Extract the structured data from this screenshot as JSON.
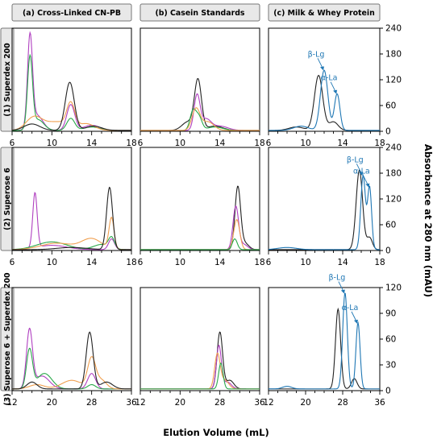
{
  "chart_data": {
    "type": "line",
    "xlabel": "Elution Volume (mL)",
    "ylabel": "Absorbance at 280 nm (mAU)",
    "columns": [
      {
        "label": "(a) Cross-Linked CN-PB"
      },
      {
        "label": "(b) Casein Standards"
      },
      {
        "label": "(c) Milk & Whey Protein"
      }
    ],
    "rows": [
      {
        "label": "(1) Superdex 200",
        "xlim": [
          6,
          18
        ],
        "xticks": [
          "6",
          "10",
          "14",
          "18"
        ],
        "ylim": [
          0,
          240
        ],
        "yticks": [
          "0",
          "60",
          "120",
          "180",
          "240"
        ]
      },
      {
        "label": "(2) Superose 6",
        "xlim": [
          6,
          18
        ],
        "xticks": [
          "6",
          "10",
          "14",
          "18"
        ],
        "ylim": [
          0,
          240
        ],
        "yticks": [
          "0",
          "60",
          "120",
          "180",
          "240"
        ]
      },
      {
        "label": "(3) Superose 6 + Superdex 200",
        "xlim": [
          12,
          36
        ],
        "xticks": [
          "12",
          "20",
          "28",
          "36"
        ],
        "ylim": [
          0,
          120
        ],
        "yticks": [
          "0",
          "30",
          "60",
          "90",
          "120"
        ]
      }
    ],
    "series_colors": {
      "magenta": "#b040c0",
      "green": "#2aa84a",
      "orange": "#f0a050",
      "black": "#222222",
      "blue": "#1f77b4"
    },
    "panels": [
      {
        "row": 0,
        "col": 0,
        "series": [
          {
            "color": "magenta",
            "peaks": [
              [
                7.8,
                210,
                0.25
              ],
              [
                8.5,
                35,
                0.6
              ],
              [
                11.9,
                60,
                0.4
              ],
              [
                14,
                12,
                0.8
              ]
            ]
          },
          {
            "color": "green",
            "peaks": [
              [
                7.8,
                165,
                0.25
              ],
              [
                8.6,
                25,
                0.6
              ],
              [
                11.9,
                28,
                0.4
              ],
              [
                14,
                8,
                0.8
              ]
            ]
          },
          {
            "color": "orange",
            "peaks": [
              [
                8.2,
                30,
                0.8
              ],
              [
                10.5,
                20,
                1.2
              ],
              [
                11.9,
                55,
                0.4
              ],
              [
                13.5,
                15,
                0.8
              ]
            ]
          },
          {
            "color": "black",
            "peaks": [
              [
                8.0,
                15,
                0.8
              ],
              [
                11.8,
                112,
                0.45
              ],
              [
                14.2,
                10,
                0.8
              ]
            ]
          }
        ]
      },
      {
        "row": 0,
        "col": 1,
        "series": [
          {
            "color": "black",
            "peaks": [
              [
                11.8,
                115,
                0.35
              ],
              [
                10.8,
                20,
                0.6
              ],
              [
                13.5,
                10,
                0.8
              ]
            ]
          },
          {
            "color": "magenta",
            "peaks": [
              [
                11.7,
                80,
                0.3
              ],
              [
                12.6,
                25,
                0.5
              ],
              [
                14,
                10,
                0.8
              ]
            ]
          },
          {
            "color": "green",
            "peaks": [
              [
                11.3,
                45,
                0.3
              ],
              [
                11.9,
                30,
                0.3
              ],
              [
                13.5,
                8,
                0.8
              ]
            ]
          },
          {
            "color": "orange",
            "peaks": [
              [
                11.6,
                50,
                0.4
              ],
              [
                12.8,
                20,
                0.6
              ]
            ]
          }
        ]
      },
      {
        "row": 0,
        "col": 2,
        "series": [
          {
            "color": "black",
            "peaks": [
              [
                11.4,
                128,
                0.45
              ],
              [
                13.0,
                20,
                0.5
              ],
              [
                9,
                8,
                0.8
              ]
            ]
          },
          {
            "color": "blue",
            "peaks": [
              [
                12.0,
                140,
                0.4
              ],
              [
                13.4,
                85,
                0.3
              ],
              [
                9.5,
                10,
                0.8
              ]
            ]
          }
        ]
      },
      {
        "row": 1,
        "col": 0,
        "series": [
          {
            "color": "magenta",
            "peaks": [
              [
                8.3,
                128,
                0.22
              ],
              [
                16.0,
                25,
                0.3
              ],
              [
                10,
                10,
                1.5
              ]
            ]
          },
          {
            "color": "green",
            "peaks": [
              [
                10.0,
                18,
                1.5
              ],
              [
                16.0,
                25,
                0.3
              ],
              [
                15,
                12,
                0.8
              ]
            ]
          },
          {
            "color": "orange",
            "peaks": [
              [
                10.5,
                15,
                1.6
              ],
              [
                14.0,
                25,
                1.0
              ],
              [
                16.0,
                72,
                0.25
              ]
            ]
          },
          {
            "color": "black",
            "peaks": [
              [
                15.8,
                145,
                0.3
              ],
              [
                12,
                5,
                1.5
              ]
            ]
          }
        ]
      },
      {
        "row": 1,
        "col": 1,
        "series": [
          {
            "color": "black",
            "peaks": [
              [
                15.8,
                145,
                0.28
              ],
              [
                16.5,
                15,
                0.4
              ]
            ]
          },
          {
            "color": "magenta",
            "peaks": [
              [
                15.6,
                100,
                0.28
              ],
              [
                16.4,
                12,
                0.4
              ]
            ]
          },
          {
            "color": "orange",
            "peaks": [
              [
                15.7,
                70,
                0.3
              ]
            ]
          },
          {
            "color": "green",
            "peaks": [
              [
                15.5,
                25,
                0.25
              ]
            ]
          }
        ]
      },
      {
        "row": 1,
        "col": 2,
        "series": [
          {
            "color": "black",
            "peaks": [
              [
                15.8,
                185,
                0.35
              ],
              [
                16.9,
                28,
                0.3
              ]
            ]
          },
          {
            "color": "blue",
            "peaks": [
              [
                16.2,
                172,
                0.25
              ],
              [
                16.9,
                145,
                0.22
              ],
              [
                8,
                5,
                1.0
              ]
            ]
          }
        ]
      },
      {
        "row": 2,
        "col": 0,
        "series": [
          {
            "color": "magenta",
            "peaks": [
              [
                15.5,
                67,
                0.6
              ],
              [
                18.0,
                15,
                1.5
              ],
              [
                28,
                18,
                0.8
              ]
            ]
          },
          {
            "color": "green",
            "peaks": [
              [
                15.5,
                45,
                0.6
              ],
              [
                18.5,
                18,
                1.5
              ],
              [
                28,
                5,
                0.8
              ]
            ]
          },
          {
            "color": "orange",
            "peaks": [
              [
                17,
                5,
                1.5
              ],
              [
                24,
                10,
                2.0
              ],
              [
                28,
                35,
                0.8
              ],
              [
                30,
                10,
                1.0
              ]
            ]
          },
          {
            "color": "black",
            "peaks": [
              [
                16,
                8,
                1.0
              ],
              [
                27.6,
                66,
                0.7
              ],
              [
                31,
                8,
                1.2
              ]
            ]
          }
        ]
      },
      {
        "row": 2,
        "col": 1,
        "series": [
          {
            "color": "black",
            "peaks": [
              [
                28.0,
                66,
                0.55
              ],
              [
                30,
                10,
                0.8
              ]
            ]
          },
          {
            "color": "magenta",
            "peaks": [
              [
                27.8,
                50,
                0.5
              ],
              [
                29.5,
                8,
                0.8
              ]
            ]
          },
          {
            "color": "orange",
            "peaks": [
              [
                27.5,
                40,
                0.55
              ],
              [
                29,
                10,
                0.8
              ]
            ]
          },
          {
            "color": "green",
            "peaks": [
              [
                28.2,
                30,
                0.45
              ]
            ]
          }
        ]
      },
      {
        "row": 2,
        "col": 2,
        "series": [
          {
            "color": "black",
            "peaks": [
              [
                27.0,
                93,
                0.55
              ],
              [
                30.5,
                12,
                0.6
              ]
            ]
          },
          {
            "color": "blue",
            "peaks": [
              [
                28.5,
                112,
                0.5
              ],
              [
                31.3,
                77,
                0.45
              ],
              [
                16,
                3,
                1.0
              ]
            ]
          }
        ]
      }
    ],
    "annotations": [
      {
        "row": 0,
        "col": 2,
        "text": "β-Lg",
        "x": 12.0,
        "y": 140
      },
      {
        "row": 0,
        "col": 2,
        "text": "α-La",
        "x": 13.4,
        "y": 85
      },
      {
        "row": 1,
        "col": 2,
        "text": "β-Lg",
        "x": 16.2,
        "y": 172
      },
      {
        "row": 1,
        "col": 2,
        "text": "α-La",
        "x": 16.9,
        "y": 145
      },
      {
        "row": 2,
        "col": 2,
        "text": "β-Lg",
        "x": 28.5,
        "y": 112
      },
      {
        "row": 2,
        "col": 2,
        "text": "α-La",
        "x": 31.3,
        "y": 77
      }
    ]
  }
}
